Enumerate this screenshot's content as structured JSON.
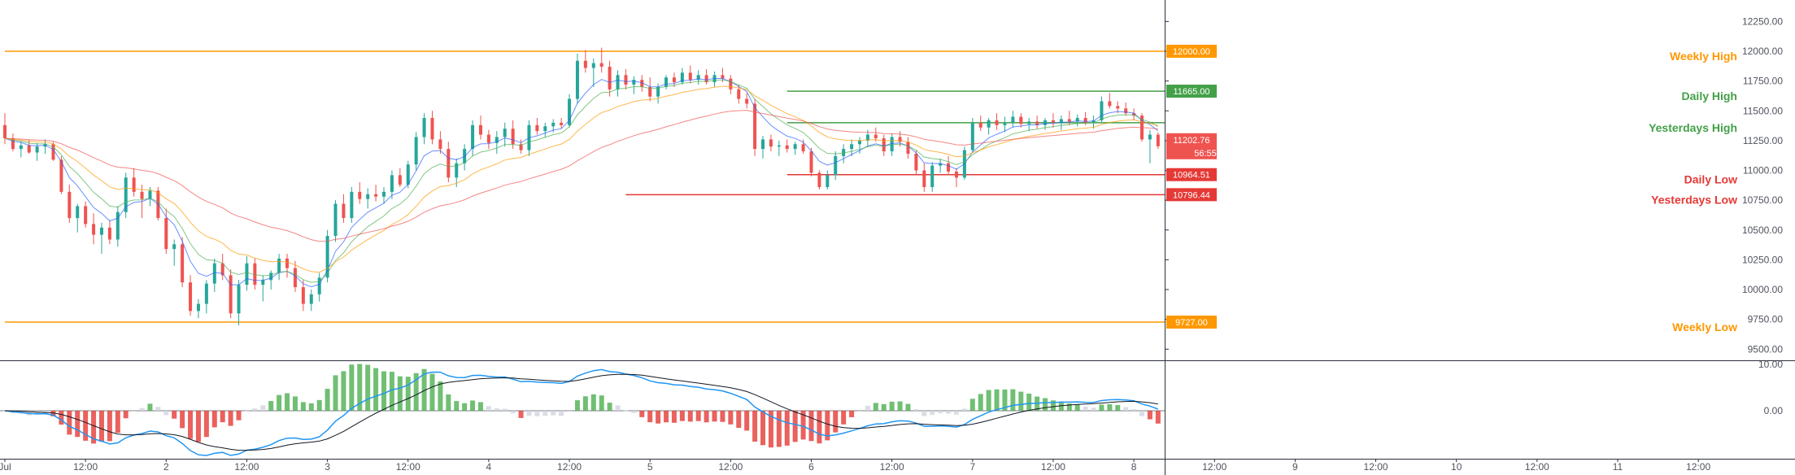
{
  "chart_data": {
    "type": "candlestick",
    "price_axis": {
      "range": [
        9400,
        12500
      ],
      "ticks": [
        "12250.00",
        "12000.00",
        "11750.00",
        "11500.00",
        "11250.00",
        "11000.00",
        "10750.00",
        "10500.00",
        "10250.00",
        "10000.00",
        "9750.00",
        "9500.00"
      ]
    },
    "time_axis": {
      "ticks": [
        "Jul",
        "12:00",
        "2",
        "12:00",
        "3",
        "12:00",
        "4",
        "12:00",
        "5",
        "12:00",
        "6",
        "12:00",
        "7",
        "12:00",
        "8",
        "12:00",
        "9",
        "12:00",
        "10",
        "12:00",
        "11",
        "12:00"
      ]
    },
    "levels": [
      {
        "label": "Weekly High",
        "price": 12000,
        "badge": "12000.00",
        "color": "#ff9800",
        "start_day": 0
      },
      {
        "label": "Daily High",
        "price": 11665,
        "badge": "11665.00",
        "color": "#43a047",
        "start_day": 4.85
      },
      {
        "label": "Yesterdays High",
        "price": 11400,
        "badge": "",
        "color": "#43a047",
        "start_day": 4.85
      },
      {
        "label": "Daily Low",
        "price": 10964.51,
        "badge": "10964.51",
        "color": "#e53935",
        "start_day": 4.85
      },
      {
        "label": "Yesterdays Low",
        "price": 10796.44,
        "badge": "10796.44",
        "color": "#e53935",
        "start_day": 3.85
      },
      {
        "label": "Weekly Low",
        "price": 9727,
        "badge": "9727.00",
        "color": "#ff9800",
        "start_day": 0
      }
    ],
    "current_price": {
      "price": 11202.76,
      "badge": "11202.76",
      "countdown": "56:55",
      "color": "#ef5350"
    },
    "candles": [
      [
        0.0,
        11380,
        11480,
        11220,
        11270
      ],
      [
        0.05,
        11270,
        11310,
        11160,
        11180
      ],
      [
        0.1,
        11180,
        11240,
        11110,
        11210
      ],
      [
        0.15,
        11210,
        11260,
        11140,
        11150
      ],
      [
        0.2,
        11150,
        11230,
        11080,
        11200
      ],
      [
        0.25,
        11200,
        11260,
        11140,
        11220
      ],
      [
        0.3,
        11220,
        11240,
        11080,
        11090
      ],
      [
        0.35,
        11090,
        11120,
        10800,
        10820
      ],
      [
        0.4,
        10820,
        10880,
        10560,
        10600
      ],
      [
        0.45,
        10600,
        10720,
        10480,
        10700
      ],
      [
        0.5,
        10700,
        10740,
        10520,
        10550
      ],
      [
        0.55,
        10550,
        10640,
        10380,
        10460
      ],
      [
        0.6,
        10460,
        10560,
        10300,
        10520
      ],
      [
        0.65,
        10520,
        10580,
        10380,
        10420
      ],
      [
        0.7,
        10420,
        10700,
        10360,
        10650
      ],
      [
        0.75,
        10650,
        10980,
        10600,
        10940
      ],
      [
        0.8,
        10940,
        11020,
        10780,
        10820
      ],
      [
        0.85,
        10820,
        10880,
        10600,
        10760
      ],
      [
        0.9,
        10760,
        10860,
        10700,
        10830
      ],
      [
        0.95,
        10830,
        10860,
        10580,
        10600
      ],
      [
        1.0,
        10600,
        10680,
        10300,
        10340
      ],
      [
        1.05,
        10340,
        10420,
        10200,
        10380
      ],
      [
        1.1,
        10380,
        10440,
        10020,
        10060
      ],
      [
        1.15,
        10060,
        10120,
        9780,
        9820
      ],
      [
        1.2,
        9820,
        9920,
        9760,
        9880
      ],
      [
        1.25,
        9880,
        10080,
        9800,
        10050
      ],
      [
        1.3,
        10050,
        10260,
        9980,
        10220
      ],
      [
        1.35,
        10220,
        10300,
        10080,
        10120
      ],
      [
        1.4,
        10120,
        10170,
        9760,
        9800
      ],
      [
        1.45,
        9800,
        10080,
        9700,
        10040
      ],
      [
        1.5,
        10040,
        10280,
        9990,
        10220
      ],
      [
        1.55,
        10220,
        10260,
        10000,
        10040
      ],
      [
        1.6,
        10040,
        10120,
        9900,
        10080
      ],
      [
        1.65,
        10080,
        10160,
        10000,
        10140
      ],
      [
        1.7,
        10140,
        10300,
        10080,
        10260
      ],
      [
        1.75,
        10260,
        10300,
        10100,
        10180
      ],
      [
        1.8,
        10180,
        10240,
        9980,
        10020
      ],
      [
        1.85,
        10020,
        10080,
        9820,
        9880
      ],
      [
        1.9,
        9880,
        10000,
        9820,
        9960
      ],
      [
        1.95,
        9960,
        10140,
        9900,
        10100
      ],
      [
        2.0,
        10100,
        10500,
        10060,
        10450
      ],
      [
        2.05,
        10450,
        10750,
        10400,
        10720
      ],
      [
        2.1,
        10720,
        10800,
        10560,
        10600
      ],
      [
        2.15,
        10600,
        10860,
        10560,
        10820
      ],
      [
        2.2,
        10820,
        10900,
        10720,
        10760
      ],
      [
        2.25,
        10760,
        10850,
        10680,
        10800
      ],
      [
        2.3,
        10800,
        10880,
        10740,
        10780
      ],
      [
        2.35,
        10780,
        10860,
        10720,
        10820
      ],
      [
        2.4,
        10820,
        11000,
        10760,
        10960
      ],
      [
        2.45,
        10960,
        11020,
        10860,
        10880
      ],
      [
        2.5,
        10880,
        11080,
        10850,
        11050
      ],
      [
        2.55,
        11050,
        11320,
        11000,
        11280
      ],
      [
        2.6,
        11280,
        11480,
        11220,
        11440
      ],
      [
        2.65,
        11440,
        11500,
        11220,
        11260
      ],
      [
        2.7,
        11260,
        11330,
        11140,
        11180
      ],
      [
        2.75,
        11180,
        11240,
        10900,
        10940
      ],
      [
        2.8,
        10940,
        11100,
        10860,
        11060
      ],
      [
        2.85,
        11060,
        11220,
        11000,
        11180
      ],
      [
        2.9,
        11180,
        11420,
        11120,
        11380
      ],
      [
        2.95,
        11380,
        11460,
        11260,
        11300
      ],
      [
        3.0,
        11300,
        11340,
        11180,
        11230
      ],
      [
        3.05,
        11230,
        11330,
        11140,
        11280
      ],
      [
        3.1,
        11280,
        11400,
        11200,
        11350
      ],
      [
        3.15,
        11350,
        11420,
        11180,
        11220
      ],
      [
        3.2,
        11220,
        11260,
        11140,
        11170
      ],
      [
        3.25,
        11170,
        11420,
        11120,
        11380
      ],
      [
        3.3,
        11380,
        11440,
        11300,
        11330
      ],
      [
        3.35,
        11330,
        11400,
        11280,
        11370
      ],
      [
        3.4,
        11370,
        11430,
        11320,
        11400
      ],
      [
        3.45,
        11400,
        11440,
        11350,
        11380
      ],
      [
        3.5,
        11380,
        11640,
        11360,
        11600
      ],
      [
        3.55,
        11600,
        11980,
        11560,
        11920
      ],
      [
        3.6,
        11920,
        12010,
        11820,
        11860
      ],
      [
        3.65,
        11860,
        11940,
        11700,
        11900
      ],
      [
        3.7,
        11900,
        12030,
        11820,
        11870
      ],
      [
        3.75,
        11870,
        11920,
        11620,
        11680
      ],
      [
        3.8,
        11680,
        11840,
        11620,
        11800
      ],
      [
        3.85,
        11800,
        11850,
        11680,
        11720
      ],
      [
        3.9,
        11720,
        11790,
        11640,
        11760
      ],
      [
        3.95,
        11760,
        11800,
        11660,
        11700
      ],
      [
        4.0,
        11700,
        11780,
        11580,
        11620
      ],
      [
        4.05,
        11620,
        11730,
        11560,
        11700
      ],
      [
        4.1,
        11700,
        11800,
        11680,
        11780
      ],
      [
        4.15,
        11780,
        11820,
        11700,
        11740
      ],
      [
        4.2,
        11740,
        11860,
        11720,
        11820
      ],
      [
        4.25,
        11820,
        11880,
        11730,
        11760
      ],
      [
        4.3,
        11760,
        11840,
        11720,
        11800
      ],
      [
        4.35,
        11800,
        11850,
        11720,
        11740
      ],
      [
        4.4,
        11740,
        11830,
        11700,
        11800
      ],
      [
        4.45,
        11800,
        11860,
        11740,
        11770
      ],
      [
        4.5,
        11770,
        11800,
        11640,
        11680
      ],
      [
        4.55,
        11680,
        11720,
        11560,
        11600
      ],
      [
        4.6,
        11600,
        11650,
        11520,
        11560
      ],
      [
        4.65,
        11560,
        11600,
        11120,
        11180
      ],
      [
        4.7,
        11180,
        11290,
        11100,
        11260
      ],
      [
        4.75,
        11260,
        11300,
        11160,
        11200
      ],
      [
        4.8,
        11200,
        11250,
        11120,
        11210
      ],
      [
        4.85,
        11210,
        11260,
        11150,
        11180
      ],
      [
        4.9,
        11180,
        11240,
        11130,
        11220
      ],
      [
        4.95,
        11220,
        11260,
        11140,
        11160
      ],
      [
        5.0,
        11160,
        11190,
        10950,
        10980
      ],
      [
        5.05,
        10980,
        11000,
        10840,
        10860
      ],
      [
        5.1,
        10860,
        11000,
        10840,
        10960
      ],
      [
        5.15,
        10960,
        11160,
        10920,
        11120
      ],
      [
        5.2,
        11120,
        11220,
        11060,
        11180
      ],
      [
        5.25,
        11180,
        11260,
        11120,
        11220
      ],
      [
        5.3,
        11220,
        11280,
        11140,
        11250
      ],
      [
        5.35,
        11250,
        11340,
        11200,
        11300
      ],
      [
        5.4,
        11300,
        11360,
        11240,
        11270
      ],
      [
        5.45,
        11270,
        11300,
        11120,
        11160
      ],
      [
        5.5,
        11160,
        11310,
        11120,
        11280
      ],
      [
        5.55,
        11280,
        11330,
        11200,
        11240
      ],
      [
        5.6,
        11240,
        11280,
        11100,
        11140
      ],
      [
        5.65,
        11140,
        11170,
        10960,
        11000
      ],
      [
        5.7,
        11000,
        11060,
        10820,
        10860
      ],
      [
        5.75,
        10860,
        11070,
        10820,
        11040
      ],
      [
        5.8,
        11040,
        11100,
        10980,
        11060
      ],
      [
        5.85,
        11060,
        11120,
        10960,
        10990
      ],
      [
        5.9,
        10990,
        11020,
        10860,
        10940
      ],
      [
        5.95,
        10940,
        11200,
        10920,
        11170
      ],
      [
        6.0,
        11170,
        11440,
        11150,
        11400
      ],
      [
        6.05,
        11400,
        11460,
        11330,
        11360
      ],
      [
        6.1,
        11360,
        11440,
        11300,
        11420
      ],
      [
        6.15,
        11420,
        11480,
        11340,
        11380
      ],
      [
        6.2,
        11380,
        11450,
        11320,
        11400
      ],
      [
        6.25,
        11400,
        11500,
        11360,
        11450
      ],
      [
        6.3,
        11450,
        11480,
        11360,
        11390
      ],
      [
        6.35,
        11390,
        11440,
        11330,
        11410
      ],
      [
        6.4,
        11410,
        11460,
        11350,
        11380
      ],
      [
        6.45,
        11380,
        11440,
        11340,
        11420
      ],
      [
        6.5,
        11420,
        11480,
        11360,
        11400
      ],
      [
        6.55,
        11400,
        11460,
        11340,
        11430
      ],
      [
        6.6,
        11430,
        11500,
        11380,
        11410
      ],
      [
        6.65,
        11410,
        11470,
        11370,
        11440
      ],
      [
        6.7,
        11440,
        11490,
        11380,
        11400
      ],
      [
        6.75,
        11400,
        11460,
        11350,
        11420
      ],
      [
        6.8,
        11420,
        11620,
        11400,
        11580
      ],
      [
        6.85,
        11580,
        11650,
        11520,
        11540
      ],
      [
        6.9,
        11540,
        11580,
        11480,
        11520
      ],
      [
        6.95,
        11520,
        11570,
        11460,
        11480
      ],
      [
        7.0,
        11480,
        11520,
        11420,
        11460
      ],
      [
        7.05,
        11460,
        11480,
        11240,
        11260
      ],
      [
        7.1,
        11260,
        11340,
        11060,
        11300
      ],
      [
        7.15,
        11300,
        11320,
        11180,
        11202.76
      ]
    ]
  }
}
